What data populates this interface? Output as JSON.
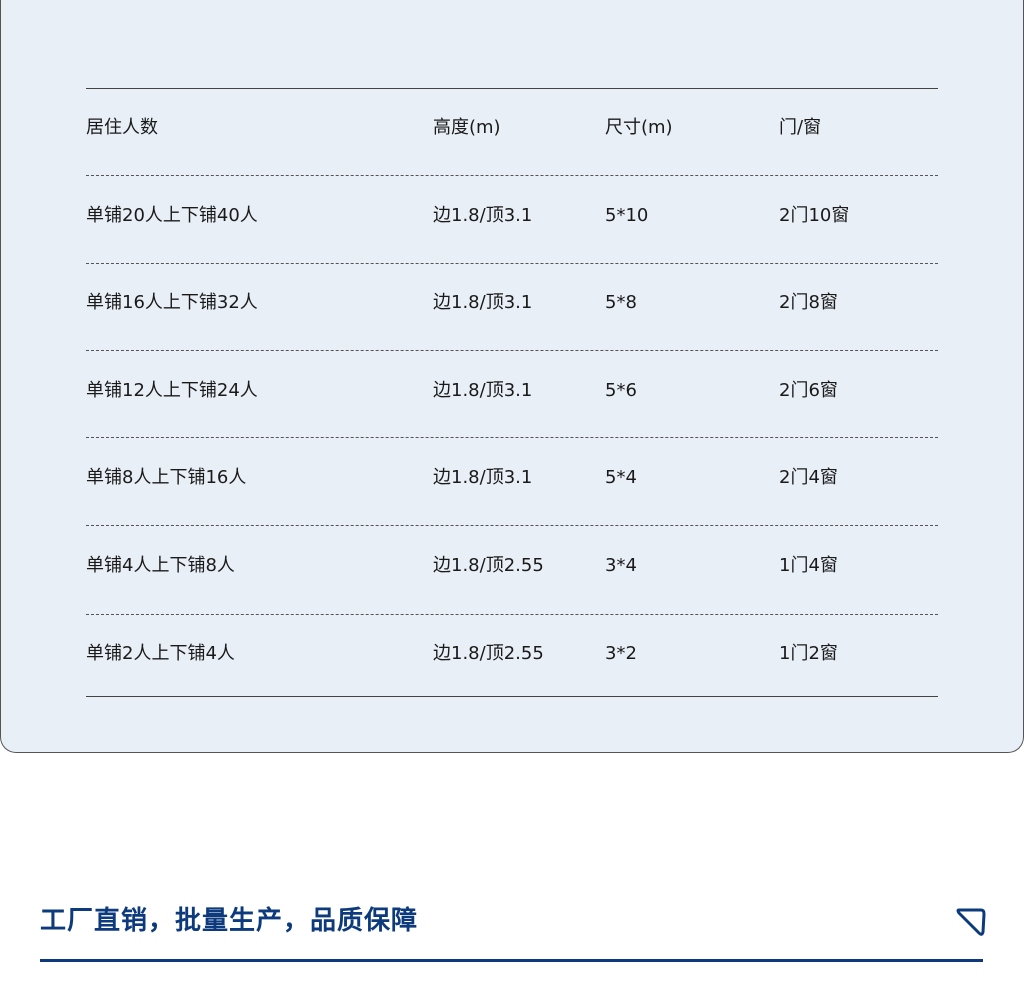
{
  "table": {
    "headers": [
      "居住人数",
      "高度(m)",
      "尺寸(m)",
      "门/窗"
    ],
    "rows": [
      [
        "单铺20人上下铺40人",
        "边1.8/顶3.1",
        "5*10",
        "2门10窗"
      ],
      [
        "单铺16人上下铺32人",
        "边1.8/顶3.1",
        "5*8",
        "2门8窗"
      ],
      [
        "单铺12人上下铺24人",
        "边1.8/顶3.1",
        "5*6",
        "2门6窗"
      ],
      [
        "单铺8人上下铺16人",
        "边1.8/顶3.1",
        "5*4",
        "2门4窗"
      ],
      [
        "单铺4人上下铺8人",
        "边1.8/顶2.55",
        "3*4",
        "1门4窗"
      ],
      [
        "单铺2人上下铺4人",
        "边1.8/顶2.55",
        "3*2",
        "1门2窗"
      ]
    ]
  },
  "section": {
    "title": "工厂直销，批量生产，品质保障",
    "icon": "triangle-marker-icon",
    "accent_color": "#0d3a7c"
  }
}
